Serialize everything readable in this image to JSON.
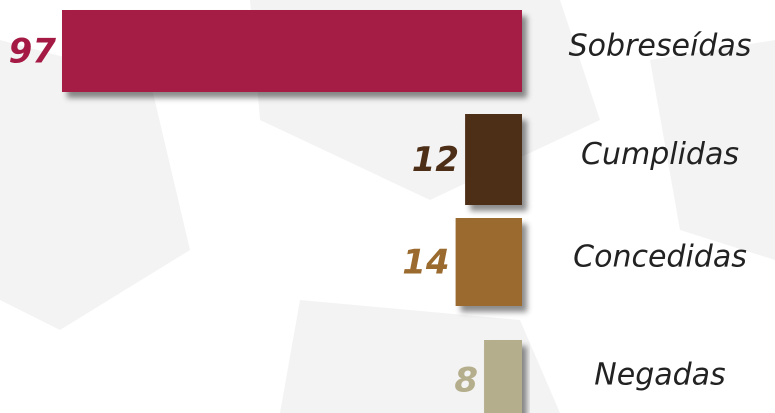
{
  "chart_data": {
    "type": "bar",
    "orientation": "horizontal",
    "categories": [
      "Sobreseídas",
      "Cumplidas",
      "Concedidas",
      "Negadas"
    ],
    "values": [
      97,
      12,
      14,
      8
    ],
    "colors": [
      "#a51a45",
      "#4d2e17",
      "#9a6a2e",
      "#b5ae8c"
    ]
  }
}
